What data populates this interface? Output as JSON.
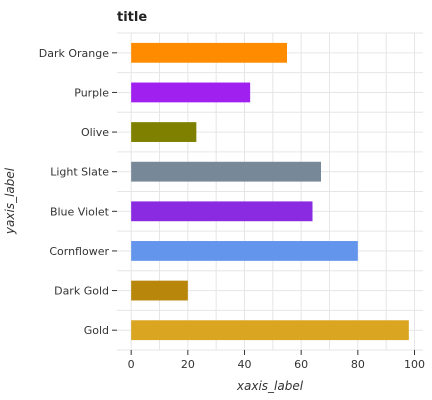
{
  "chart_data": {
    "type": "bar",
    "orientation": "horizontal",
    "title": "title",
    "xlabel": "xaxis_label",
    "ylabel": "yaxis_label",
    "xlim": [
      -5,
      103
    ],
    "xticks": [
      0,
      20,
      40,
      60,
      80,
      100
    ],
    "grid": true,
    "legend": "none",
    "categories": [
      "Gold",
      "Dark Gold",
      "Cornflower",
      "Blue Violet",
      "Light Slate",
      "Olive",
      "Purple",
      "Dark Orange"
    ],
    "values": [
      98,
      20,
      80,
      64,
      67,
      23,
      42,
      55
    ],
    "colors": [
      "#daa520",
      "#b8860b",
      "#6495ed",
      "#8a2be2",
      "#778899",
      "#808000",
      "#a020f0",
      "#ff8c00"
    ]
  }
}
